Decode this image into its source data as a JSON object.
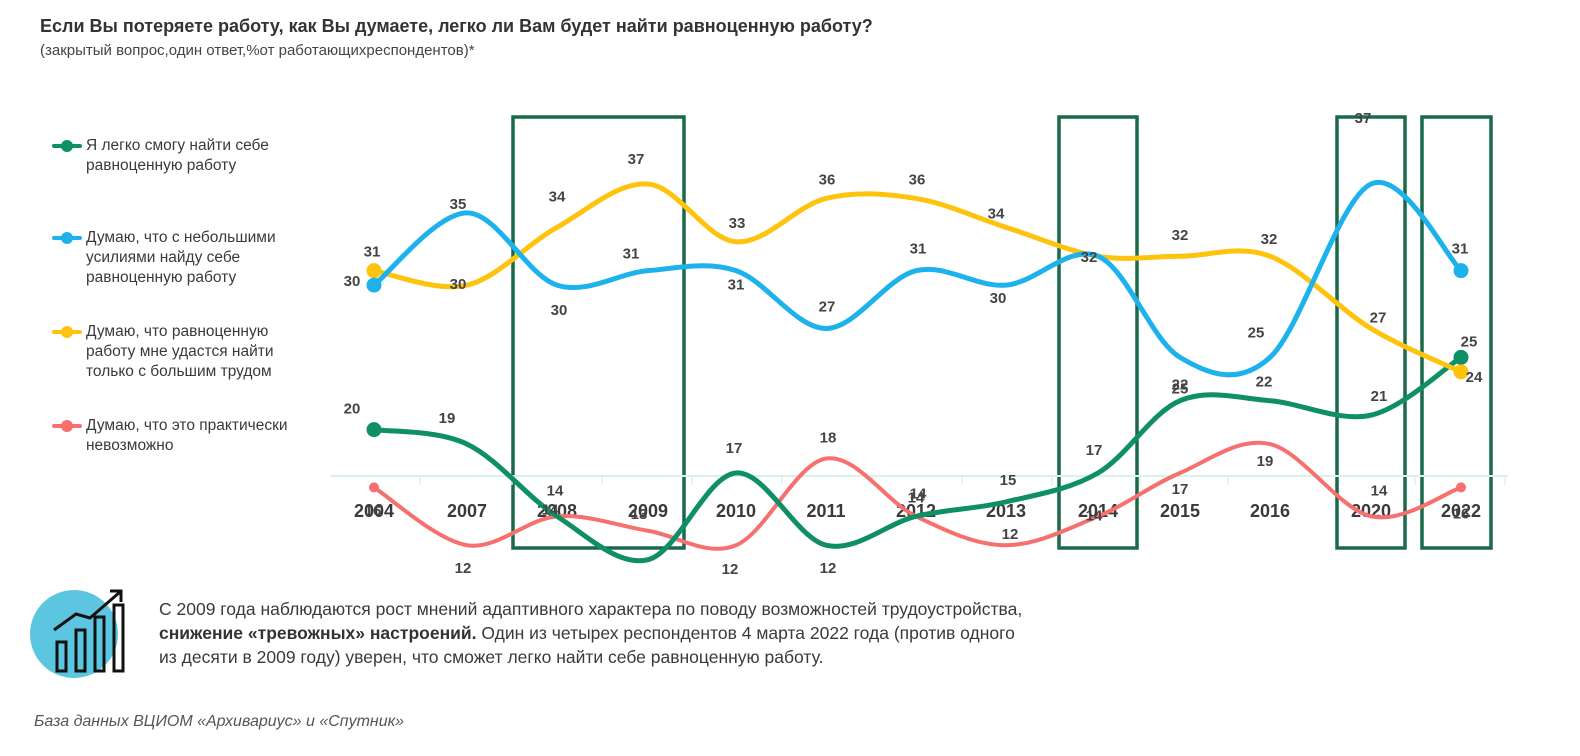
{
  "header": {
    "title": "Если Вы потеряете работу, как Вы думаете, легко ли Вам будет найти равноценную работу?",
    "subtitle": "(закрытый вопрос,один ответ,%от работающихреспондентов)*"
  },
  "colors": {
    "green": "#0e8f65",
    "blue": "#1db2ec",
    "yellow": "#fec30d",
    "red": "#f5706e",
    "highlight_box": "#1a6a4a",
    "axis": "#d8f3ec",
    "icon_circle": "#5cc6e1"
  },
  "chart_data": {
    "type": "line",
    "x": [
      "2004",
      "2007",
      "2008",
      "2009",
      "2010",
      "2011",
      "2012",
      "2013",
      "2014",
      "2015",
      "2016",
      "2020",
      "2022"
    ],
    "series": [
      {
        "name": "Я легко смогу найти себе равноценную работу",
        "color": "#0e8f65",
        "values": [
          20,
          19,
          14,
          11,
          17,
          12,
          14,
          15,
          17,
          22,
          22,
          21,
          25
        ],
        "value_labels": [
          "20",
          "19",
          "14",
          "11",
          "17",
          "12",
          "14",
          "15",
          "17",
          "22",
          "22",
          "21",
          "25"
        ]
      },
      {
        "name": "Думаю, что с небольшими усилиями найду себе равноценную работу",
        "color": "#1db2ec",
        "values": [
          30,
          35,
          30,
          31,
          31,
          27,
          31,
          30,
          32,
          25,
          25,
          37,
          31
        ],
        "value_labels": [
          "30",
          "35",
          "30",
          "31",
          "31",
          "27",
          "31",
          "30",
          "32",
          "25",
          "25",
          "37",
          "31"
        ]
      },
      {
        "name": "Думаю, что равноценную работу мне удастся найти только с большим трудом",
        "color": "#fec30d",
        "values": [
          31,
          30,
          34,
          37,
          33,
          36,
          36,
          34,
          32,
          32,
          32,
          27,
          24
        ],
        "value_labels": [
          "31",
          "30",
          "34",
          "37",
          "33",
          "36",
          "36",
          "34",
          "",
          "32",
          "32",
          "27",
          "24"
        ]
      },
      {
        "name": "Думаю, что это практически невозможно",
        "color": "#f5706e",
        "values": [
          16,
          12,
          14,
          13,
          12,
          18,
          14,
          12,
          14,
          17,
          19,
          14,
          16
        ],
        "value_labels": [
          "16",
          "12",
          "14",
          "13",
          "12",
          "18",
          "14",
          "12",
          "14",
          "17",
          "19",
          "14",
          "16"
        ]
      }
    ],
    "highlighted_years": [
      "2008",
      "2009",
      "2014",
      "2020",
      "2022"
    ],
    "xlabel": "",
    "ylabel": "",
    "ylim": [
      5,
      45
    ],
    "grid": false,
    "legend": "left"
  },
  "legend_items": [
    {
      "key": "green",
      "label": "Я легко смогу найти себе равноценную работу"
    },
    {
      "key": "blue",
      "label": "Думаю, что с небольшими усилиями найду себе равноценную работу"
    },
    {
      "key": "yellow",
      "label": "Думаю, что равноценную работу мне удастся найти только с большим трудом"
    },
    {
      "key": "red",
      "label": "Думаю, что это практически невозможно"
    }
  ],
  "note": {
    "line1": "С 2009 года наблюдаются рост мнений адаптивного характера по поводу возможностей трудоустройства,",
    "bold": "снижение «тревожных» настроений.",
    "line2_rest": " Один из четырех респондентов 4 марта 2022 года (против одного",
    "line3": "из десяти в 2009 году) уверен, что сможет легко найти себе равноценную работу.",
    "icon": "growth-chart-icon"
  },
  "source": "База данных ВЦИОМ «Архивариус» и «Спутник»"
}
